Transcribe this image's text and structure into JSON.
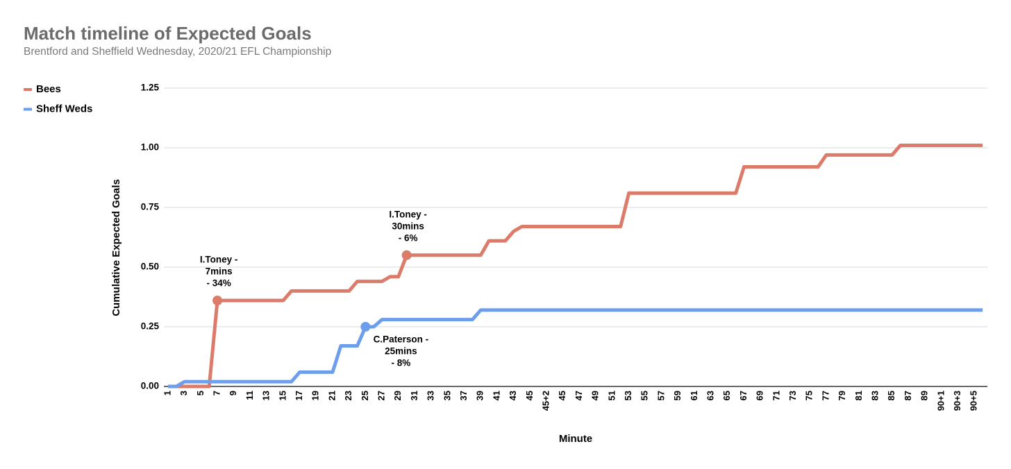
{
  "chart_data": {
    "type": "line",
    "title": "Match timeline of Expected Goals",
    "subtitle": "Brentford and Sheffield Wednesday, 2020/21 EFL Championship",
    "x_label": "Minute",
    "y_label": "Cumulative Expected Goals",
    "legend": "top-left",
    "grid": true,
    "ylim": [
      0,
      1.25
    ],
    "yticks": [
      {
        "value": 0,
        "label": "0.00"
      },
      {
        "value": 0.25,
        "label": "0.25"
      },
      {
        "value": 0.5,
        "label": "0.50"
      },
      {
        "value": 0.75,
        "label": "0.75"
      },
      {
        "value": 1,
        "label": "1.00"
      },
      {
        "value": 1.25,
        "label": "1.25"
      }
    ],
    "categories": [
      "1",
      null,
      "3",
      null,
      "5",
      null,
      "7",
      null,
      "9",
      null,
      "11",
      null,
      "13",
      null,
      "15",
      null,
      "17",
      null,
      "19",
      null,
      "21",
      null,
      "23",
      null,
      "25",
      null,
      "27",
      null,
      "29",
      null,
      "31",
      null,
      "33",
      null,
      "35",
      null,
      "37",
      null,
      "39",
      null,
      "41",
      null,
      "43",
      null,
      "45",
      null,
      "45+2",
      null,
      "45",
      null,
      "47",
      null,
      "49",
      null,
      "51",
      null,
      "53",
      null,
      "55",
      null,
      "57",
      null,
      "59",
      null,
      "61",
      null,
      "63",
      null,
      "65",
      null,
      "67",
      null,
      "69",
      null,
      "71",
      null,
      "73",
      null,
      "75",
      null,
      "77",
      null,
      "79",
      null,
      "81",
      null,
      "83",
      null,
      "85",
      null,
      "87",
      null,
      "89",
      null,
      "90+1",
      null,
      "90+3",
      null,
      "90+5",
      null
    ],
    "series": [
      {
        "name": "Bees",
        "color": "#dd7b6b",
        "label_position": "above",
        "values": [
          0,
          0,
          0,
          0,
          0,
          0,
          0.36,
          0.36,
          0.36,
          0.36,
          0.36,
          0.36,
          0.36,
          0.36,
          0.36,
          0.4,
          0.4,
          0.4,
          0.4,
          0.4,
          0.4,
          0.4,
          0.4,
          0.44,
          0.44,
          0.44,
          0.44,
          0.46,
          0.46,
          0.55,
          0.55,
          0.55,
          0.55,
          0.55,
          0.55,
          0.55,
          0.55,
          0.55,
          0.55,
          0.61,
          0.61,
          0.61,
          0.65,
          0.67,
          0.67,
          0.67,
          0.67,
          0.67,
          0.67,
          0.67,
          0.67,
          0.67,
          0.67,
          0.67,
          0.67,
          0.67,
          0.81,
          0.81,
          0.81,
          0.81,
          0.81,
          0.81,
          0.81,
          0.81,
          0.81,
          0.81,
          0.81,
          0.81,
          0.81,
          0.81,
          0.92,
          0.92,
          0.92,
          0.92,
          0.92,
          0.92,
          0.92,
          0.92,
          0.92,
          0.92,
          0.97,
          0.97,
          0.97,
          0.97,
          0.97,
          0.97,
          0.97,
          0.97,
          0.97,
          1.01,
          1.01,
          1.01,
          1.01,
          1.01,
          1.01,
          1.01,
          1.01,
          1.01,
          1.01,
          1.01
        ],
        "labels": [
          null,
          null,
          null,
          null,
          null,
          null,
          [
            "I.Toney -",
            "7mins",
            "- 34%"
          ],
          null,
          null,
          null,
          null,
          null,
          null,
          null,
          null,
          null,
          null,
          null,
          null,
          null,
          null,
          null,
          null,
          null,
          null,
          null,
          null,
          null,
          null,
          [
            "I.Toney -",
            "30mins",
            "- 6%"
          ],
          null,
          null,
          null,
          null,
          null,
          null,
          null,
          null,
          null,
          null,
          null,
          null,
          null,
          null,
          null,
          null,
          null,
          null,
          null,
          null,
          null,
          null,
          null,
          null,
          null,
          null,
          null,
          null,
          null,
          null,
          null,
          null,
          null,
          null,
          null,
          null,
          null,
          null,
          null,
          null,
          null,
          null,
          null,
          null,
          null,
          null,
          null,
          null,
          null,
          null,
          null,
          null,
          null,
          null,
          null,
          null,
          null,
          null,
          null,
          null,
          null,
          null,
          null,
          null,
          null,
          null,
          null,
          null,
          null,
          null
        ]
      },
      {
        "name": "Sheff Weds",
        "color": "#6d9eeb",
        "label_position": "below",
        "values": [
          0,
          0,
          0.02,
          0.02,
          0.02,
          0.02,
          0.02,
          0.02,
          0.02,
          0.02,
          0.02,
          0.02,
          0.02,
          0.02,
          0.02,
          0.02,
          0.06,
          0.06,
          0.06,
          0.06,
          0.06,
          0.17,
          0.17,
          0.17,
          0.25,
          0.25,
          0.28,
          0.28,
          0.28,
          0.28,
          0.28,
          0.28,
          0.28,
          0.28,
          0.28,
          0.28,
          0.28,
          0.28,
          0.32,
          0.32,
          0.32,
          0.32,
          0.32,
          0.32,
          0.32,
          0.32,
          0.32,
          0.32,
          0.32,
          0.32,
          0.32,
          0.32,
          0.32,
          0.32,
          0.32,
          0.32,
          0.32,
          0.32,
          0.32,
          0.32,
          0.32,
          0.32,
          0.32,
          0.32,
          0.32,
          0.32,
          0.32,
          0.32,
          0.32,
          0.32,
          0.32,
          0.32,
          0.32,
          0.32,
          0.32,
          0.32,
          0.32,
          0.32,
          0.32,
          0.32,
          0.32,
          0.32,
          0.32,
          0.32,
          0.32,
          0.32,
          0.32,
          0.32,
          0.32,
          0.32,
          0.32,
          0.32,
          0.32,
          0.32,
          0.32,
          0.32,
          0.32,
          0.32,
          0.32,
          0.32
        ],
        "labels": [
          null,
          null,
          null,
          null,
          null,
          null,
          null,
          null,
          null,
          null,
          null,
          null,
          null,
          null,
          null,
          null,
          null,
          null,
          null,
          null,
          null,
          null,
          null,
          null,
          [
            "C.Paterson -",
            "25mins",
            "- 8%"
          ],
          null,
          null,
          null,
          null,
          null,
          null,
          null,
          null,
          null,
          null,
          null,
          null,
          null,
          null,
          null,
          null,
          null,
          null,
          null,
          null,
          null,
          null,
          null,
          null,
          null,
          null,
          null,
          null,
          null,
          null,
          null,
          null,
          null,
          null,
          null,
          null,
          null,
          null,
          null,
          null,
          null,
          null,
          null,
          null,
          null,
          null,
          null,
          null,
          null,
          null,
          null,
          null,
          null,
          null,
          null,
          null,
          null,
          null,
          null,
          null,
          null,
          null,
          null,
          null,
          null,
          null,
          null,
          null,
          null,
          null,
          null,
          null,
          null,
          null,
          null
        ]
      }
    ]
  }
}
